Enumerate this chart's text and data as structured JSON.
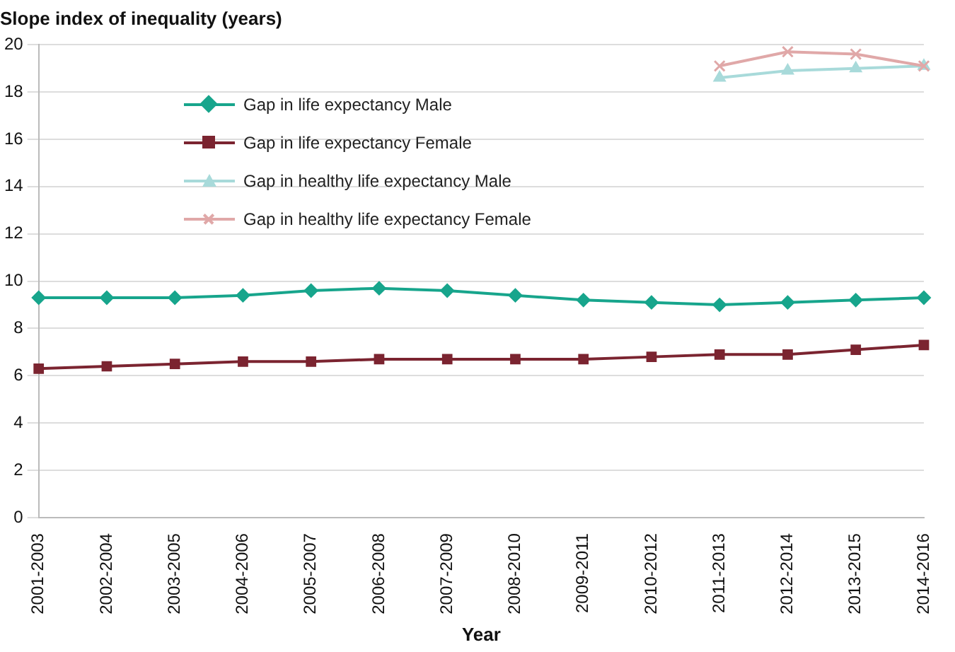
{
  "chart_data": {
    "type": "line",
    "ylabel": "Slope index of inequality (years)",
    "xlabel": "Year",
    "categories": [
      "2001-2003",
      "2002-2004",
      "2003-2005",
      "2004-2006",
      "2005-2007",
      "2006-2008",
      "2007-2009",
      "2008-2010",
      "2009-2011",
      "2010-2012",
      "2011-2013",
      "2012-2014",
      "2013-2015",
      "2014-2016"
    ],
    "series": [
      {
        "name": "Gap in life expectancy Male",
        "color": "#17a58c",
        "marker": "diamond",
        "values": [
          9.3,
          9.3,
          9.3,
          9.4,
          9.6,
          9.7,
          9.6,
          9.4,
          9.2,
          9.1,
          9.0,
          9.1,
          9.2,
          9.3
        ]
      },
      {
        "name": "Gap in life expectancy Female",
        "color": "#7b2430",
        "marker": "square",
        "values": [
          6.3,
          6.4,
          6.5,
          6.6,
          6.6,
          6.7,
          6.7,
          6.7,
          6.7,
          6.8,
          6.9,
          6.9,
          7.1,
          7.3
        ]
      },
      {
        "name": "Gap in healthy life expectancy Male",
        "color": "#a8dada",
        "marker": "triangle",
        "values": [
          null,
          null,
          null,
          null,
          null,
          null,
          null,
          null,
          null,
          null,
          18.6,
          18.9,
          19.0,
          19.1
        ]
      },
      {
        "name": "Gap in healthy life expectancy Female",
        "color": "#e0a8a8",
        "marker": "cross",
        "values": [
          null,
          null,
          null,
          null,
          null,
          null,
          null,
          null,
          null,
          null,
          19.1,
          19.7,
          19.6,
          19.1
        ]
      }
    ],
    "ylim": [
      0,
      20
    ],
    "yticks": [
      0,
      2,
      4,
      6,
      8,
      10,
      12,
      14,
      16,
      18,
      20
    ],
    "grid": "y",
    "legend": "top left"
  }
}
